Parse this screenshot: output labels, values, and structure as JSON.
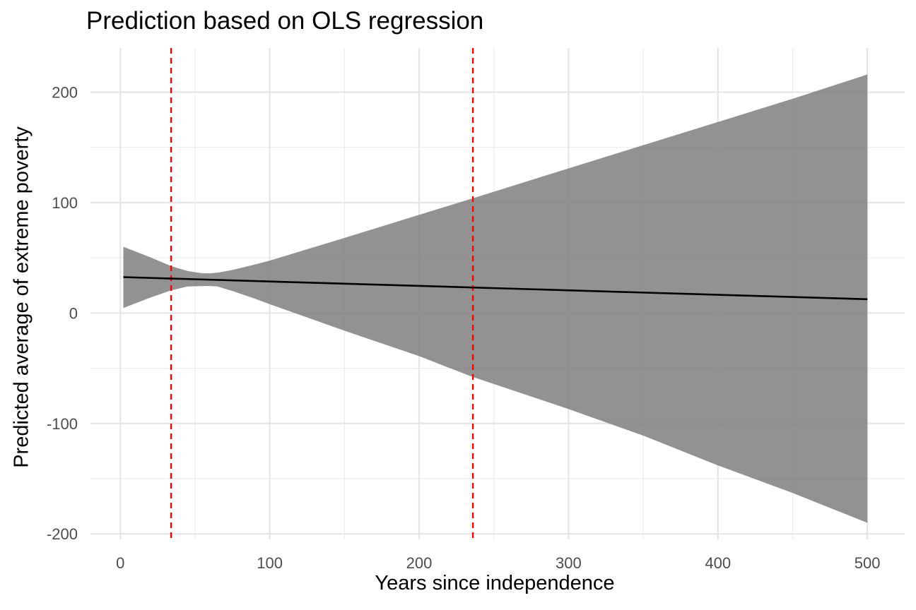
{
  "chart_data": {
    "type": "line",
    "title": "Prediction based on OLS regression",
    "xlabel": "Years since independence",
    "ylabel": "Predicted average of extreme poverty",
    "xlim": [
      -20,
      525
    ],
    "ylim": [
      -205,
      240
    ],
    "x_ticks": [
      0,
      100,
      200,
      300,
      400,
      500
    ],
    "x_minor_ticks": [
      50,
      150,
      250,
      350,
      450
    ],
    "y_ticks": [
      -200,
      -100,
      0,
      100,
      200
    ],
    "y_minor_ticks": [
      -150,
      -50,
      50,
      150
    ],
    "grid": true,
    "series": [
      {
        "kind": "fit",
        "x": [
          2,
          500
        ],
        "y": [
          32.5,
          12.5
        ],
        "color": "#000000"
      },
      {
        "kind": "confidence-band",
        "x": [
          2,
          20,
          34,
          45,
          55,
          60,
          65,
          75,
          90,
          100,
          150,
          200,
          235,
          300,
          350,
          400,
          450,
          500
        ],
        "upper": [
          60,
          50.5,
          42.5,
          38,
          36,
          36,
          36.5,
          39,
          44,
          47.5,
          68,
          89,
          103.5,
          131,
          152,
          173,
          194,
          216
        ],
        "lower": [
          4.5,
          14,
          20.5,
          24,
          24.5,
          24.5,
          24,
          20,
          13,
          8,
          -16,
          -39,
          -57.5,
          -87,
          -111,
          -138,
          -163,
          -190
        ],
        "color": "#7f7f7f"
      }
    ],
    "reference_lines": [
      {
        "orientation": "vertical",
        "x": 34,
        "style": "dashed",
        "color": "#ff0000"
      },
      {
        "orientation": "vertical",
        "x": 236,
        "style": "dashed",
        "color": "#ff0000"
      }
    ]
  }
}
